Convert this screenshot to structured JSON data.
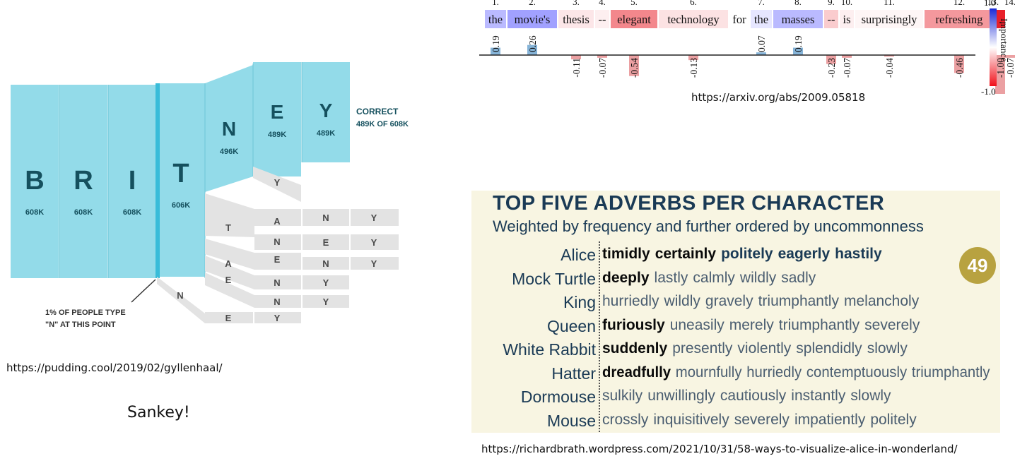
{
  "sankey": {
    "letters": [
      {
        "letter": "B",
        "count": "608K"
      },
      {
        "letter": "R",
        "count": "608K"
      },
      {
        "letter": "I",
        "count": "608K"
      },
      {
        "letter": "T",
        "count": "606K"
      },
      {
        "letter": "N",
        "count": "496K"
      },
      {
        "letter": "E",
        "count": "489K"
      },
      {
        "letter": "Y",
        "count": "489K"
      }
    ],
    "correct_label": "CORRECT",
    "correct_sub": "489K OF 608K",
    "branch_letters": [
      "Y",
      "T",
      "A",
      "N",
      "Y",
      "N",
      "E",
      "Y",
      "E",
      "N",
      "Y",
      "A",
      "E",
      "N",
      "Y",
      "N",
      "Y",
      "N",
      "E",
      "Y"
    ],
    "annotation_line1": "1% OF PEOPLE TYPE",
    "annotation_line2": "\"N\" AT THIS POINT",
    "url": "https://pudding.cool/2019/02/gyllenhaal/",
    "caption": "Sankey!"
  },
  "importance": {
    "tokens": [
      {
        "idx": "1.",
        "word": "the",
        "value": 0.19,
        "label": "0.19"
      },
      {
        "idx": "2.",
        "word": "movie's",
        "value": 0.26,
        "label": "0.26"
      },
      {
        "idx": "3.",
        "word": "thesis",
        "value": -0.11,
        "label": "-0.11"
      },
      {
        "idx": "4.",
        "word": "--",
        "value": -0.07,
        "label": "-0.07"
      },
      {
        "idx": "5.",
        "word": "elegant",
        "value": -0.54,
        "label": "-0.54"
      },
      {
        "idx": "6.",
        "word": "technology",
        "value": -0.13,
        "label": "-0.13"
      },
      {
        "idx": "",
        "word": "for",
        "value": 0.0,
        "label": ""
      },
      {
        "idx": "7.",
        "word": "the",
        "value": 0.07,
        "label": "0.07"
      },
      {
        "idx": "8.",
        "word": "masses",
        "value": 0.19,
        "label": "0.19"
      },
      {
        "idx": "9.",
        "word": "--",
        "value": -0.23,
        "label": "-0.23"
      },
      {
        "idx": "10.",
        "word": "is",
        "value": -0.07,
        "label": "-0.07"
      },
      {
        "idx": "11.",
        "word": "surprisingly",
        "value": -0.04,
        "label": "-0.04"
      },
      {
        "idx": "12.",
        "word": "refreshing",
        "value": -0.46,
        "label": "-0.46"
      },
      {
        "idx": "13.",
        "word": ".",
        "value": -1.0,
        "label": "-1.00"
      },
      {
        "idx": "14.",
        "word": "",
        "value": -0.07,
        "label": "-0.07"
      }
    ],
    "colorbar_max": "1.0",
    "colorbar_min": "-1.0",
    "colorbar_label": "Importance",
    "url": "https://arxiv.org/abs/2009.05818"
  },
  "adverbs": {
    "title": "TOP FIVE ADVERBS PER CHARACTER",
    "subtitle": "Weighted by frequency and further ordered by uncommonness",
    "badge": "49",
    "rows": [
      {
        "name": "Alice",
        "words": [
          "timidly",
          "certainly",
          "politely",
          "eagerly",
          "hastily"
        ]
      },
      {
        "name": "Mock Turtle",
        "words": [
          "deeply",
          "lastly",
          "calmly",
          "wildly",
          "sadly"
        ]
      },
      {
        "name": "King",
        "words": [
          "hurriedly",
          "wildly",
          "gravely",
          "triumphantly",
          "melancholy"
        ]
      },
      {
        "name": "Queen",
        "words": [
          "furiously",
          "uneasily",
          "merely",
          "triumphantly",
          "severely"
        ]
      },
      {
        "name": "White Rabbit",
        "words": [
          "suddenly",
          "presently",
          "violently",
          "splendidly",
          "slowly"
        ]
      },
      {
        "name": "Hatter",
        "words": [
          "dreadfully",
          "mournfully",
          "hurriedly",
          "contemptuously",
          "triumphantly"
        ]
      },
      {
        "name": "Dormouse",
        "words": [
          "sulkily",
          "unwillingly",
          "cautiously",
          "instantly",
          "slowly"
        ]
      },
      {
        "name": "Mouse",
        "words": [
          "crossly",
          "inquisitively",
          "severely",
          "impatiently",
          "politely"
        ]
      }
    ],
    "url": "https://richardbrath.wordpress.com/2021/10/31/58-ways-to-visualize-alice-in-wonderland/"
  },
  "colors": {
    "sankey_blue": "#93dbe9",
    "sankey_dark": "#15505e",
    "sankey_gray": "#e3e3e3",
    "neg": "#e8202a",
    "pos": "#3a3ae0"
  }
}
